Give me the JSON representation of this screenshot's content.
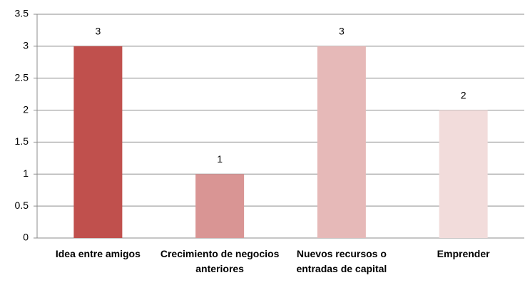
{
  "chart_data": {
    "type": "bar",
    "categories": [
      "Idea entre amigos",
      "Crecimiento de negocios anteriores",
      "Nuevos recursos o entradas de capital",
      "Emprender"
    ],
    "values": [
      3,
      1,
      3,
      2
    ],
    "colors": [
      "#c0504d",
      "#d99594",
      "#e6b9b8",
      "#f2dcdb"
    ],
    "ylim": [
      0,
      3.5
    ],
    "yticks": [
      0,
      0.5,
      1,
      1.5,
      2,
      2.5,
      3,
      3.5
    ],
    "grid": true
  }
}
